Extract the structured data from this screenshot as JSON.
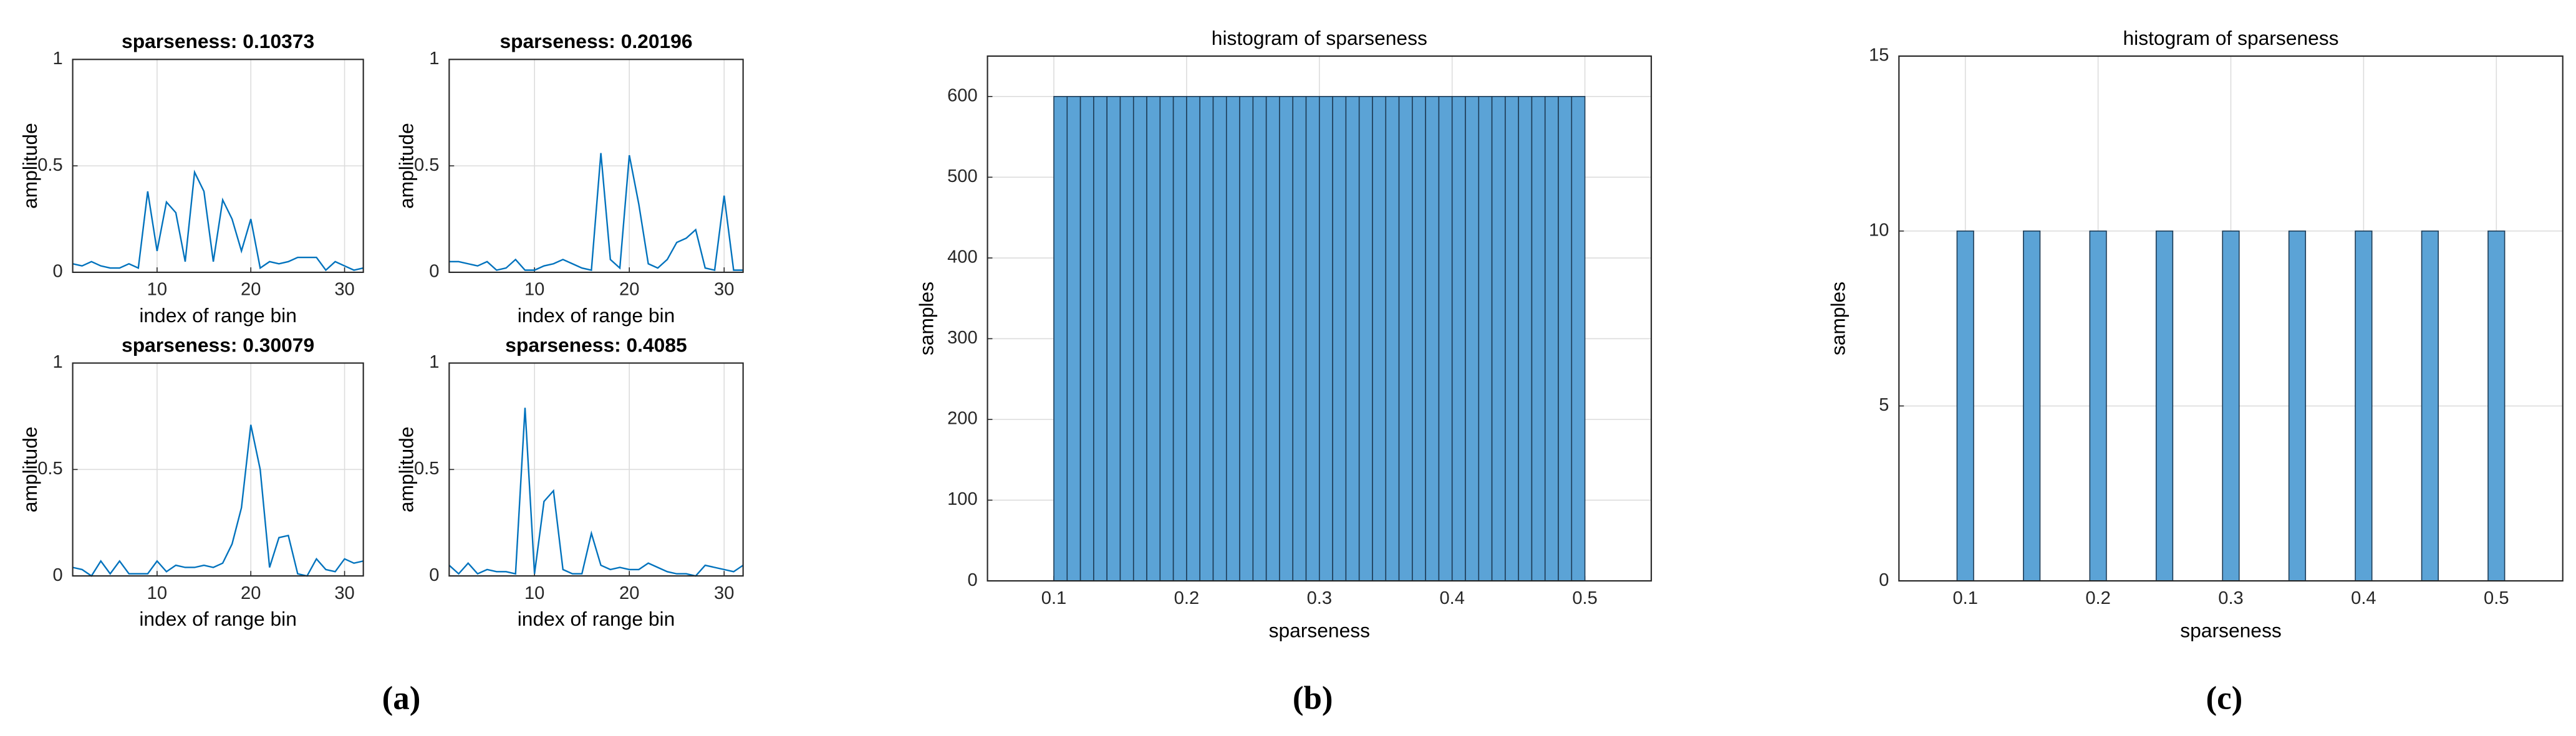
{
  "chart_data": [
    {
      "type": "line",
      "title": "sparseness: 0.10373",
      "xlabel": "index of range bin",
      "ylabel": "amplitude",
      "grid": true,
      "color": "#0072bd",
      "x": [
        1,
        2,
        3,
        4,
        5,
        6,
        7,
        8,
        9,
        10,
        11,
        12,
        13,
        14,
        15,
        16,
        17,
        18,
        19,
        20,
        21,
        22,
        23,
        24,
        25,
        26,
        27,
        28,
        29,
        30,
        31,
        32
      ],
      "values": [
        0.04,
        0.03,
        0.05,
        0.03,
        0.02,
        0.02,
        0.04,
        0.02,
        0.38,
        0.1,
        0.33,
        0.28,
        0.05,
        0.47,
        0.38,
        0.05,
        0.34,
        0.25,
        0.1,
        0.25,
        0.02,
        0.05,
        0.04,
        0.05,
        0.07,
        0.07,
        0.07,
        0.01,
        0.05,
        0.03,
        0.01,
        0.02
      ],
      "xlim": [
        1,
        32
      ],
      "xticks": [
        10,
        20,
        30
      ],
      "ylim": [
        0,
        1
      ],
      "yticks": [
        0,
        0.5,
        1
      ]
    },
    {
      "type": "line",
      "title": "sparseness: 0.20196",
      "xlabel": "index of range bin",
      "ylabel": "amplitude",
      "grid": true,
      "color": "#0072bd",
      "x": [
        1,
        2,
        3,
        4,
        5,
        6,
        7,
        8,
        9,
        10,
        11,
        12,
        13,
        14,
        15,
        16,
        17,
        18,
        19,
        20,
        21,
        22,
        23,
        24,
        25,
        26,
        27,
        28,
        29,
        30,
        31,
        32
      ],
      "values": [
        0.05,
        0.05,
        0.04,
        0.03,
        0.05,
        0.01,
        0.02,
        0.06,
        0.01,
        0.01,
        0.03,
        0.04,
        0.06,
        0.04,
        0.02,
        0.01,
        0.56,
        0.06,
        0.02,
        0.55,
        0.32,
        0.04,
        0.02,
        0.06,
        0.14,
        0.16,
        0.2,
        0.02,
        0.01,
        0.36,
        0.01,
        0.01
      ],
      "xlim": [
        1,
        32
      ],
      "xticks": [
        10,
        20,
        30
      ],
      "ylim": [
        0,
        1
      ],
      "yticks": [
        0,
        0.5,
        1
      ]
    },
    {
      "type": "line",
      "title": "sparseness: 0.30079",
      "xlabel": "index of range bin",
      "ylabel": "amplitude",
      "grid": true,
      "color": "#0072bd",
      "x": [
        1,
        2,
        3,
        4,
        5,
        6,
        7,
        8,
        9,
        10,
        11,
        12,
        13,
        14,
        15,
        16,
        17,
        18,
        19,
        20,
        21,
        22,
        23,
        24,
        25,
        26,
        27,
        28,
        29,
        30,
        31,
        32
      ],
      "values": [
        0.04,
        0.03,
        0.0,
        0.07,
        0.01,
        0.07,
        0.01,
        0.01,
        0.01,
        0.07,
        0.02,
        0.05,
        0.04,
        0.04,
        0.05,
        0.04,
        0.06,
        0.15,
        0.32,
        0.71,
        0.5,
        0.04,
        0.18,
        0.19,
        0.01,
        0.0,
        0.08,
        0.03,
        0.02,
        0.08,
        0.06,
        0.07
      ],
      "xlim": [
        1,
        32
      ],
      "xticks": [
        10,
        20,
        30
      ],
      "ylim": [
        0,
        1
      ],
      "yticks": [
        0,
        0.5,
        1
      ]
    },
    {
      "type": "line",
      "title": "sparseness: 0.4085",
      "xlabel": "index of range bin",
      "ylabel": "amplitude",
      "grid": true,
      "color": "#0072bd",
      "x": [
        1,
        2,
        3,
        4,
        5,
        6,
        7,
        8,
        9,
        10,
        11,
        12,
        13,
        14,
        15,
        16,
        17,
        18,
        19,
        20,
        21,
        22,
        23,
        24,
        25,
        26,
        27,
        28,
        29,
        30,
        31,
        32
      ],
      "values": [
        0.05,
        0.01,
        0.06,
        0.01,
        0.03,
        0.02,
        0.02,
        0.01,
        0.79,
        0.01,
        0.35,
        0.4,
        0.03,
        0.01,
        0.01,
        0.2,
        0.05,
        0.03,
        0.04,
        0.03,
        0.03,
        0.06,
        0.04,
        0.02,
        0.01,
        0.01,
        0.0,
        0.05,
        0.04,
        0.03,
        0.02,
        0.05
      ],
      "xlim": [
        1,
        32
      ],
      "xticks": [
        10,
        20,
        30
      ],
      "ylim": [
        0,
        1
      ],
      "yticks": [
        0,
        0.5,
        1
      ]
    },
    {
      "type": "histogram",
      "title": "histogram of sparseness",
      "xlabel": "sparseness",
      "ylabel": "samples",
      "grid": true,
      "color": "#5ba3d6",
      "edgecolor": "#1d3b55",
      "bins": [
        0.1,
        0.11,
        0.12,
        0.13,
        0.14,
        0.15,
        0.16,
        0.17,
        0.18,
        0.19,
        0.2,
        0.21,
        0.22,
        0.23,
        0.24,
        0.25,
        0.26,
        0.27,
        0.28,
        0.29,
        0.3,
        0.31,
        0.32,
        0.33,
        0.34,
        0.35,
        0.36,
        0.37,
        0.38,
        0.39,
        0.4,
        0.41,
        0.42,
        0.43,
        0.44,
        0.45,
        0.46,
        0.47,
        0.48,
        0.49,
        0.5
      ],
      "values": [
        600,
        600,
        600,
        600,
        600,
        600,
        600,
        600,
        600,
        600,
        600,
        600,
        600,
        600,
        600,
        600,
        600,
        600,
        600,
        600,
        600,
        600,
        600,
        600,
        600,
        600,
        600,
        600,
        600,
        600,
        600,
        600,
        600,
        600,
        600,
        600,
        600,
        600,
        600,
        600
      ],
      "xlim": [
        0.05,
        0.55
      ],
      "xticks": [
        0.1,
        0.2,
        0.3,
        0.4,
        0.5
      ],
      "ylim": [
        0,
        650
      ],
      "yticks": [
        0,
        100,
        200,
        300,
        400,
        500,
        600
      ]
    },
    {
      "type": "histogram",
      "title": "histogram of sparseness",
      "xlabel": "sparseness",
      "ylabel": "samples",
      "grid": true,
      "color": "#5ba3d6",
      "edgecolor": "#1d3b55",
      "bins": [
        0.09375,
        0.10625,
        0.11875,
        0.13125,
        0.14375,
        0.15625,
        0.16875,
        0.18125,
        0.19375,
        0.20625,
        0.21875,
        0.23125,
        0.24375,
        0.25625,
        0.26875,
        0.28125,
        0.29375,
        0.30625,
        0.31875,
        0.33125,
        0.34375,
        0.35625,
        0.36875,
        0.38125,
        0.39375,
        0.40625,
        0.41875,
        0.43125,
        0.44375,
        0.45625,
        0.46875,
        0.48125,
        0.49375,
        0.50625
      ],
      "values": [
        10,
        0,
        0,
        0,
        10,
        0,
        0,
        0,
        10,
        0,
        0,
        0,
        10,
        0,
        0,
        0,
        10,
        0,
        0,
        0,
        10,
        0,
        0,
        0,
        10,
        0,
        0,
        0,
        10,
        0,
        0,
        0,
        10
      ],
      "xlim": [
        0.05,
        0.55
      ],
      "xticks": [
        0.1,
        0.2,
        0.3,
        0.4,
        0.5
      ],
      "ylim": [
        0,
        15
      ],
      "yticks": [
        0,
        5,
        10,
        15
      ]
    }
  ],
  "captions": [
    "(a)",
    "(b)",
    "(c)"
  ]
}
